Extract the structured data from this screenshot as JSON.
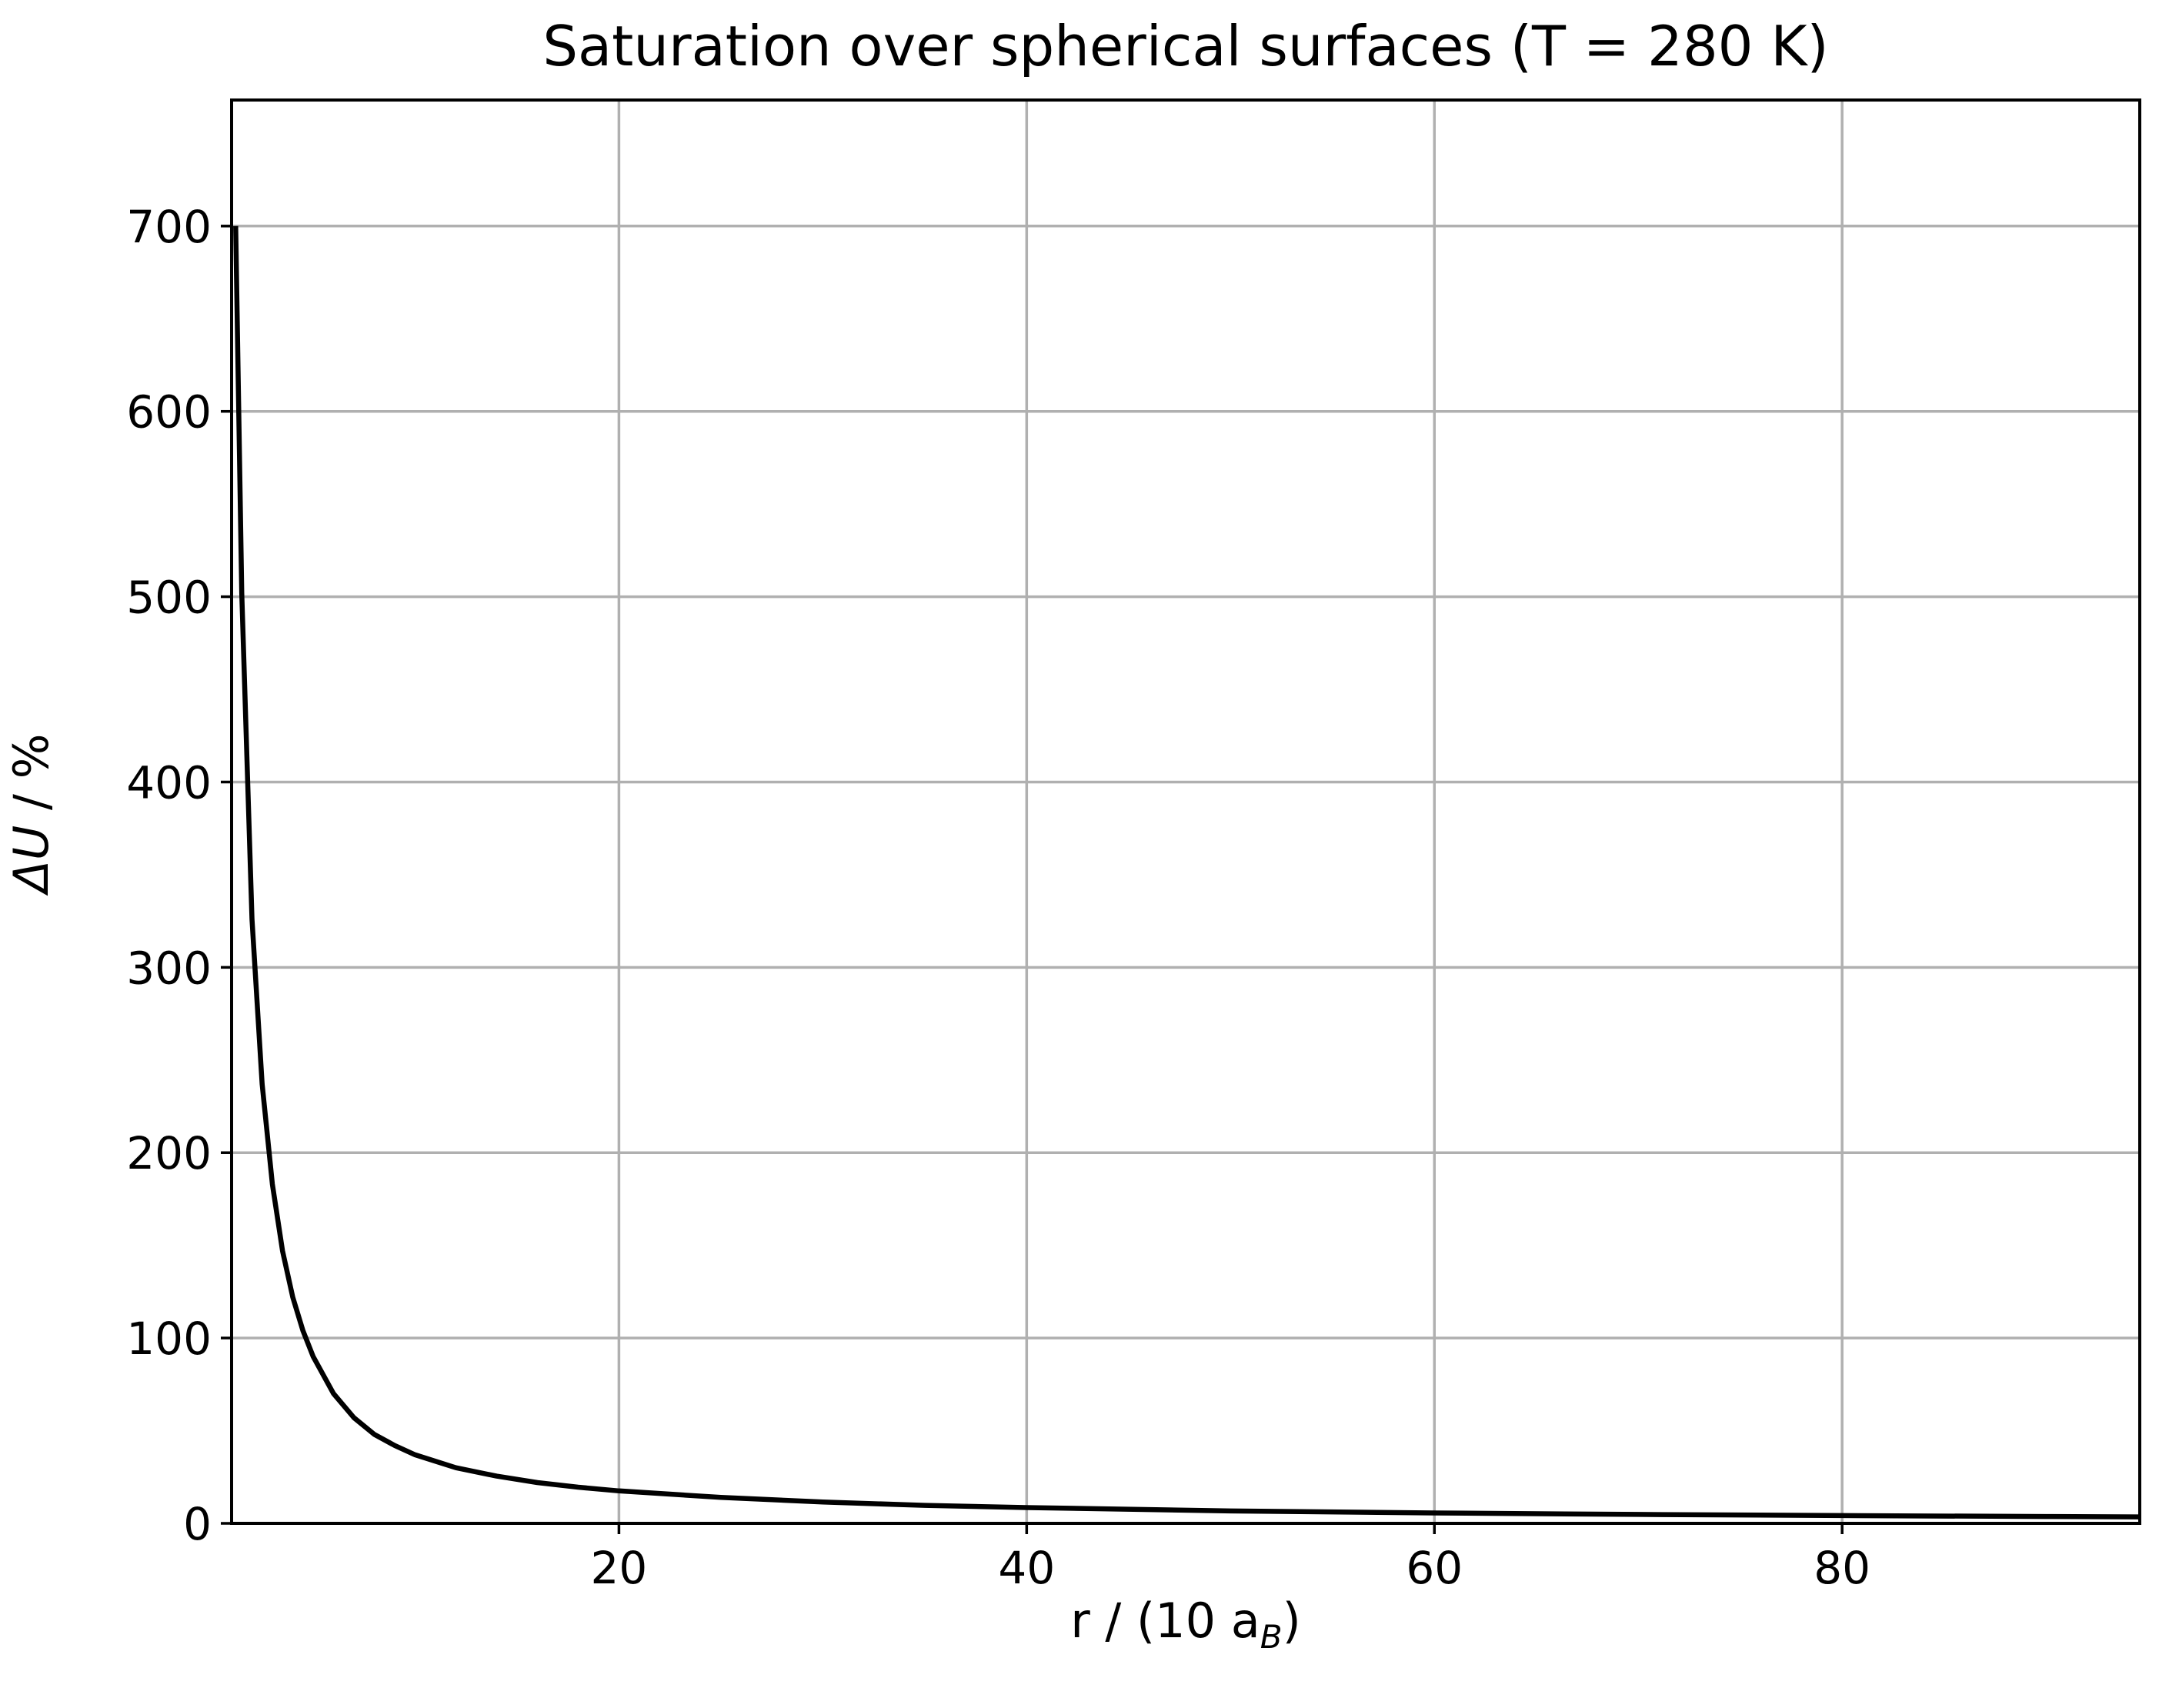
{
  "chart_data": {
    "type": "line",
    "title": "Saturation over spherical surfaces (T = 280 K)",
    "xlabel": {
      "main": "r / (10 a",
      "subscript": "B",
      "close": ")"
    },
    "ylabel": {
      "symbol": "ΔU",
      "rest": " / %"
    },
    "xlim": [
      1.0,
      94.6
    ],
    "ylim": [
      0,
      768
    ],
    "x_ticks": [
      20,
      40,
      60,
      80
    ],
    "x_tick_labels": [
      "20",
      "40",
      "60",
      "80"
    ],
    "y_ticks": [
      0,
      100,
      200,
      300,
      400,
      500,
      600,
      700
    ],
    "y_tick_labels": [
      "0",
      "100",
      "200",
      "300",
      "400",
      "500",
      "600",
      "700"
    ],
    "grid": true,
    "legend": "none",
    "colors": {
      "line": "#000000",
      "grid": "#b0b0b0",
      "axes": "#000000",
      "background": "#ffffff"
    },
    "series": [
      {
        "x": [
          1.2,
          1.5,
          2,
          2.5,
          3,
          3.5,
          4,
          4.5,
          5,
          6,
          7,
          8,
          9,
          10,
          12,
          14,
          16,
          18,
          20,
          25,
          30,
          35,
          40,
          50,
          60,
          70,
          80,
          90,
          94.6
        ],
        "y": [
          700,
          502,
          326,
          237,
          183,
          147,
          122,
          104,
          90,
          70,
          57,
          48,
          42,
          37,
          30,
          25.5,
          22,
          19.5,
          17.5,
          14,
          11.5,
          9.7,
          8.5,
          6.7,
          5.6,
          4.8,
          4.2,
          3.7,
          3.5
        ]
      }
    ]
  }
}
